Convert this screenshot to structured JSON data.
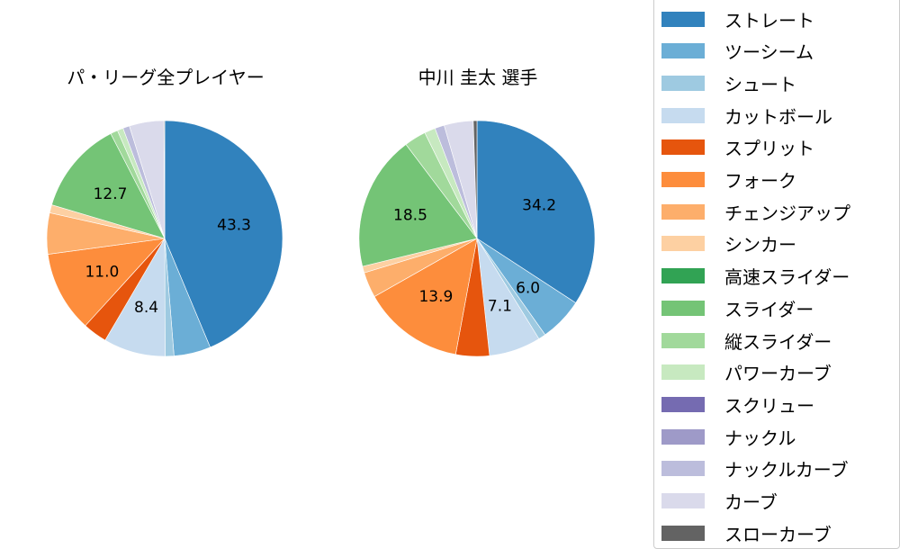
{
  "chart_data": [
    {
      "type": "pie",
      "title": "パ・リーグ全プレイヤー",
      "start_angle": "top, clockwise",
      "categories": [
        "ストレート",
        "ツーシーム",
        "シュート",
        "カットボール",
        "スプリット",
        "フォーク",
        "チェンジアップ",
        "シンカー",
        "高速スライダー",
        "スライダー",
        "縦スライダー",
        "パワーカーブ",
        "スクリュー",
        "ナックル",
        "ナックルカーブ",
        "カーブ",
        "スローカーブ"
      ],
      "values": [
        43.3,
        5.0,
        1.2,
        8.4,
        3.3,
        11.0,
        5.6,
        1.1,
        0.0,
        12.7,
        1.0,
        0.8,
        0.0,
        0.0,
        0.9,
        4.7,
        0.1
      ],
      "labels_shown": [
        "43.3",
        "8.4",
        "11.0",
        "12.7"
      ]
    },
    {
      "type": "pie",
      "title": "中川 圭太  選手",
      "start_angle": "top, clockwise",
      "categories": [
        "ストレート",
        "ツーシーム",
        "シュート",
        "カットボール",
        "スプリット",
        "フォーク",
        "チェンジアップ",
        "シンカー",
        "高速スライダー",
        "スライダー",
        "縦スライダー",
        "パワーカーブ",
        "スクリュー",
        "ナックル",
        "ナックルカーブ",
        "カーブ",
        "スローカーブ"
      ],
      "values": [
        34.2,
        6.0,
        1.0,
        7.1,
        4.6,
        13.9,
        3.5,
        0.9,
        0.0,
        18.5,
        3.0,
        1.5,
        0.0,
        0.0,
        1.3,
        4.0,
        0.5
      ],
      "labels_shown": [
        "34.2",
        "6.0",
        "7.1",
        "13.9",
        "18.5"
      ]
    }
  ],
  "titles": {
    "left": "パ・リーグ全プレイヤー",
    "right": "中川 圭太  選手"
  },
  "legend": {
    "position": "right",
    "items": [
      {
        "label": "ストレート",
        "color": "#3182bd"
      },
      {
        "label": "ツーシーム",
        "color": "#6baed6"
      },
      {
        "label": "シュート",
        "color": "#9ecae1"
      },
      {
        "label": "カットボール",
        "color": "#c6dbef"
      },
      {
        "label": "スプリット",
        "color": "#e6550d"
      },
      {
        "label": "フォーク",
        "color": "#fd8d3c"
      },
      {
        "label": "チェンジアップ",
        "color": "#fdae6b"
      },
      {
        "label": "シンカー",
        "color": "#fdd0a2"
      },
      {
        "label": "高速スライダー",
        "color": "#31a354"
      },
      {
        "label": "スライダー",
        "color": "#74c476"
      },
      {
        "label": "縦スライダー",
        "color": "#a1d99b"
      },
      {
        "label": "パワーカーブ",
        "color": "#c7e9c0"
      },
      {
        "label": "スクリュー",
        "color": "#756bb1"
      },
      {
        "label": "ナックル",
        "color": "#9e9ac8"
      },
      {
        "label": "ナックルカーブ",
        "color": "#bcbddc"
      },
      {
        "label": "カーブ",
        "color": "#dadaeb"
      },
      {
        "label": "スローカーブ",
        "color": "#636363"
      }
    ]
  }
}
